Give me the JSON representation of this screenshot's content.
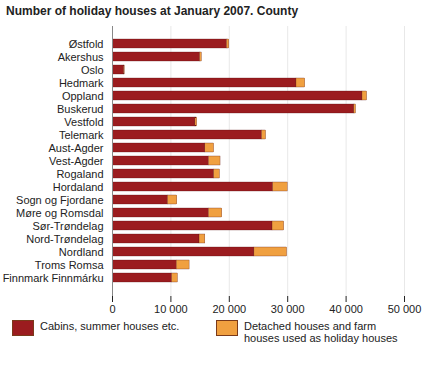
{
  "chart_data": {
    "type": "bar",
    "orientation": "horizontal",
    "stacked": true,
    "grid": true,
    "title": "Number of holiday houses at January 2007. County",
    "categories": [
      "Østfold",
      "Akershus",
      "Oslo",
      "Hedmark",
      "Oppland",
      "Buskerud",
      "Vestfold",
      "Telemark",
      "Aust-Agder",
      "Vest-Agder",
      "Rogaland",
      "Hordaland",
      "Sogn og Fjordane",
      "Møre og Romsdal",
      "Sør-Trøndelag",
      "Nord-Trøndelag",
      "Nordland",
      "Troms Romsa",
      "Finnmark Finnmárku"
    ],
    "series": [
      {
        "name": "Cabins, summer houses etc.",
        "color": "#9b1c1f",
        "values": [
          19600,
          15000,
          2000,
          31500,
          42800,
          41400,
          14200,
          25600,
          15900,
          16500,
          17400,
          27500,
          9500,
          16500,
          27400,
          14900,
          24300,
          11000,
          10200
        ]
      },
      {
        "name": "Detached houses and farm houses used as holiday houses",
        "color": "#f0a040",
        "values": [
          400,
          300,
          100,
          1500,
          800,
          300,
          300,
          700,
          1500,
          2000,
          1000,
          2500,
          1600,
          2300,
          2000,
          1000,
          5600,
          2200,
          1000
        ]
      }
    ],
    "xlim": [
      0,
      50000
    ],
    "xticks": [
      0,
      {
        "value": 10000,
        "label": "10 000"
      },
      {
        "value": 20000,
        "label": "20 000"
      },
      {
        "value": 30000,
        "label": "30 000"
      },
      {
        "value": 40000,
        "label": "40 000"
      },
      {
        "value": 50000,
        "label": "50 000"
      }
    ]
  }
}
